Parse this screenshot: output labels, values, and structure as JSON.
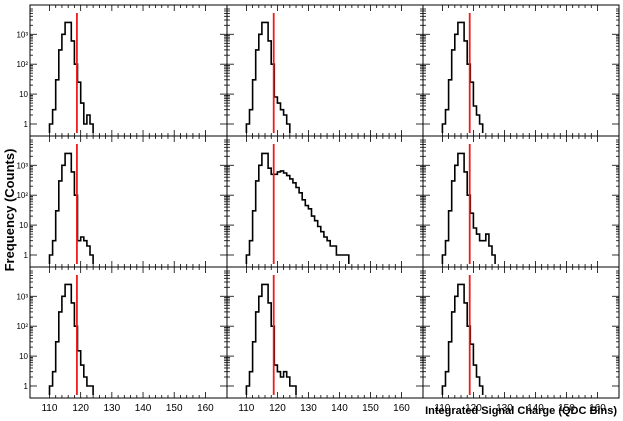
{
  "chart_data": {
    "type": "histogram-grid",
    "layout": {
      "rows": 3,
      "cols": 3
    },
    "y_axis_label": "Frequency (Counts)",
    "x_axis_label": "Integrated Signal Charge (QDC Bins)",
    "x_ticks": [
      110,
      120,
      130,
      140,
      150,
      160
    ],
    "x_tick_labels": [
      "110",
      "120",
      "130",
      "140",
      "150",
      "160"
    ],
    "y_scale": "log",
    "y_ticks": [
      1,
      10,
      100,
      1000
    ],
    "y_tick_labels": [
      "1",
      "10",
      "10²",
      "10³"
    ],
    "xlim": [
      106,
      165
    ],
    "ylim": [
      0.5,
      7000
    ],
    "histogram_color": "#000000",
    "marker_color": "#ee1c1c",
    "panels": [
      {
        "name": "row1-col1",
        "threshold": 118.8,
        "bins": [
          [
            110,
            1
          ],
          [
            111,
            3
          ],
          [
            112,
            30
          ],
          [
            113,
            300
          ],
          [
            114,
            1000
          ],
          [
            115,
            2500
          ],
          [
            116,
            2500
          ],
          [
            117,
            600
          ],
          [
            118,
            100
          ],
          [
            119,
            25
          ],
          [
            120,
            5
          ],
          [
            121,
            1
          ],
          [
            122,
            2
          ],
          [
            123,
            1
          ]
        ]
      },
      {
        "name": "row1-col2",
        "threshold": 118.8,
        "bins": [
          [
            110,
            1
          ],
          [
            111,
            3
          ],
          [
            112,
            30
          ],
          [
            113,
            300
          ],
          [
            114,
            1000
          ],
          [
            115,
            2500
          ],
          [
            116,
            2500
          ],
          [
            117,
            600
          ],
          [
            118,
            100
          ],
          [
            119,
            8
          ],
          [
            120,
            5
          ],
          [
            121,
            3
          ],
          [
            122,
            2
          ],
          [
            123,
            1
          ]
        ]
      },
      {
        "name": "row1-col3",
        "threshold": 118.8,
        "bins": [
          [
            110,
            1
          ],
          [
            111,
            3
          ],
          [
            112,
            30
          ],
          [
            113,
            300
          ],
          [
            114,
            1000
          ],
          [
            115,
            2500
          ],
          [
            116,
            2500
          ],
          [
            117,
            600
          ],
          [
            118,
            100
          ],
          [
            119,
            25
          ],
          [
            120,
            4
          ],
          [
            121,
            2
          ],
          [
            122,
            1
          ]
        ]
      },
      {
        "name": "row2-col1",
        "threshold": 118.8,
        "bins": [
          [
            110,
            1
          ],
          [
            111,
            3
          ],
          [
            112,
            30
          ],
          [
            113,
            300
          ],
          [
            114,
            1000
          ],
          [
            115,
            2500
          ],
          [
            116,
            2500
          ],
          [
            117,
            600
          ],
          [
            118,
            100
          ],
          [
            119,
            3
          ],
          [
            120,
            4
          ],
          [
            121,
            3
          ],
          [
            122,
            2
          ],
          [
            123,
            1
          ]
        ]
      },
      {
        "name": "row2-col2",
        "threshold": 118.8,
        "bins": [
          [
            110,
            1
          ],
          [
            111,
            3
          ],
          [
            112,
            30
          ],
          [
            113,
            300
          ],
          [
            114,
            1000
          ],
          [
            115,
            2500
          ],
          [
            116,
            2500
          ],
          [
            117,
            800
          ],
          [
            118,
            500
          ],
          [
            119,
            500
          ],
          [
            120,
            600
          ],
          [
            121,
            650
          ],
          [
            122,
            550
          ],
          [
            123,
            450
          ],
          [
            124,
            350
          ],
          [
            125,
            260
          ],
          [
            126,
            180
          ],
          [
            127,
            120
          ],
          [
            128,
            70
          ],
          [
            129,
            45
          ],
          [
            130,
            35
          ],
          [
            131,
            20
          ],
          [
            132,
            14
          ],
          [
            133,
            9
          ],
          [
            134,
            6
          ],
          [
            135,
            4
          ],
          [
            136,
            3
          ],
          [
            137,
            2
          ],
          [
            138,
            2
          ],
          [
            139,
            1
          ],
          [
            140,
            1
          ],
          [
            141,
            1
          ],
          [
            142,
            1
          ]
        ]
      },
      {
        "name": "row2-col3",
        "threshold": 118.8,
        "bins": [
          [
            110,
            1
          ],
          [
            111,
            3
          ],
          [
            112,
            30
          ],
          [
            113,
            300
          ],
          [
            114,
            1000
          ],
          [
            115,
            2500
          ],
          [
            116,
            2500
          ],
          [
            117,
            600
          ],
          [
            118,
            100
          ],
          [
            119,
            25
          ],
          [
            120,
            8
          ],
          [
            121,
            5
          ],
          [
            122,
            3
          ],
          [
            123,
            3
          ],
          [
            124,
            5
          ],
          [
            125,
            2
          ],
          [
            126,
            1
          ]
        ]
      },
      {
        "name": "row3-col1",
        "threshold": 118.8,
        "bins": [
          [
            110,
            1
          ],
          [
            111,
            3
          ],
          [
            112,
            30
          ],
          [
            113,
            300
          ],
          [
            114,
            1000
          ],
          [
            115,
            2500
          ],
          [
            116,
            2500
          ],
          [
            117,
            600
          ],
          [
            118,
            100
          ],
          [
            119,
            15
          ],
          [
            120,
            5
          ],
          [
            121,
            2
          ],
          [
            122,
            1
          ],
          [
            123,
            1
          ]
        ]
      },
      {
        "name": "row3-col2",
        "threshold": 118.8,
        "bins": [
          [
            110,
            1
          ],
          [
            111,
            3
          ],
          [
            112,
            30
          ],
          [
            113,
            300
          ],
          [
            114,
            1000
          ],
          [
            115,
            2500
          ],
          [
            116,
            2500
          ],
          [
            117,
            600
          ],
          [
            118,
            100
          ],
          [
            119,
            5
          ],
          [
            120,
            3
          ],
          [
            121,
            2
          ],
          [
            122,
            3
          ],
          [
            123,
            2
          ],
          [
            124,
            1
          ],
          [
            125,
            1
          ]
        ]
      },
      {
        "name": "row3-col3",
        "threshold": 118.8,
        "bins": [
          [
            110,
            1
          ],
          [
            111,
            3
          ],
          [
            112,
            30
          ],
          [
            113,
            300
          ],
          [
            114,
            1000
          ],
          [
            115,
            2500
          ],
          [
            116,
            2500
          ],
          [
            117,
            600
          ],
          [
            118,
            100
          ],
          [
            119,
            25
          ],
          [
            120,
            5
          ],
          [
            121,
            2
          ],
          [
            122,
            1
          ]
        ]
      }
    ]
  }
}
